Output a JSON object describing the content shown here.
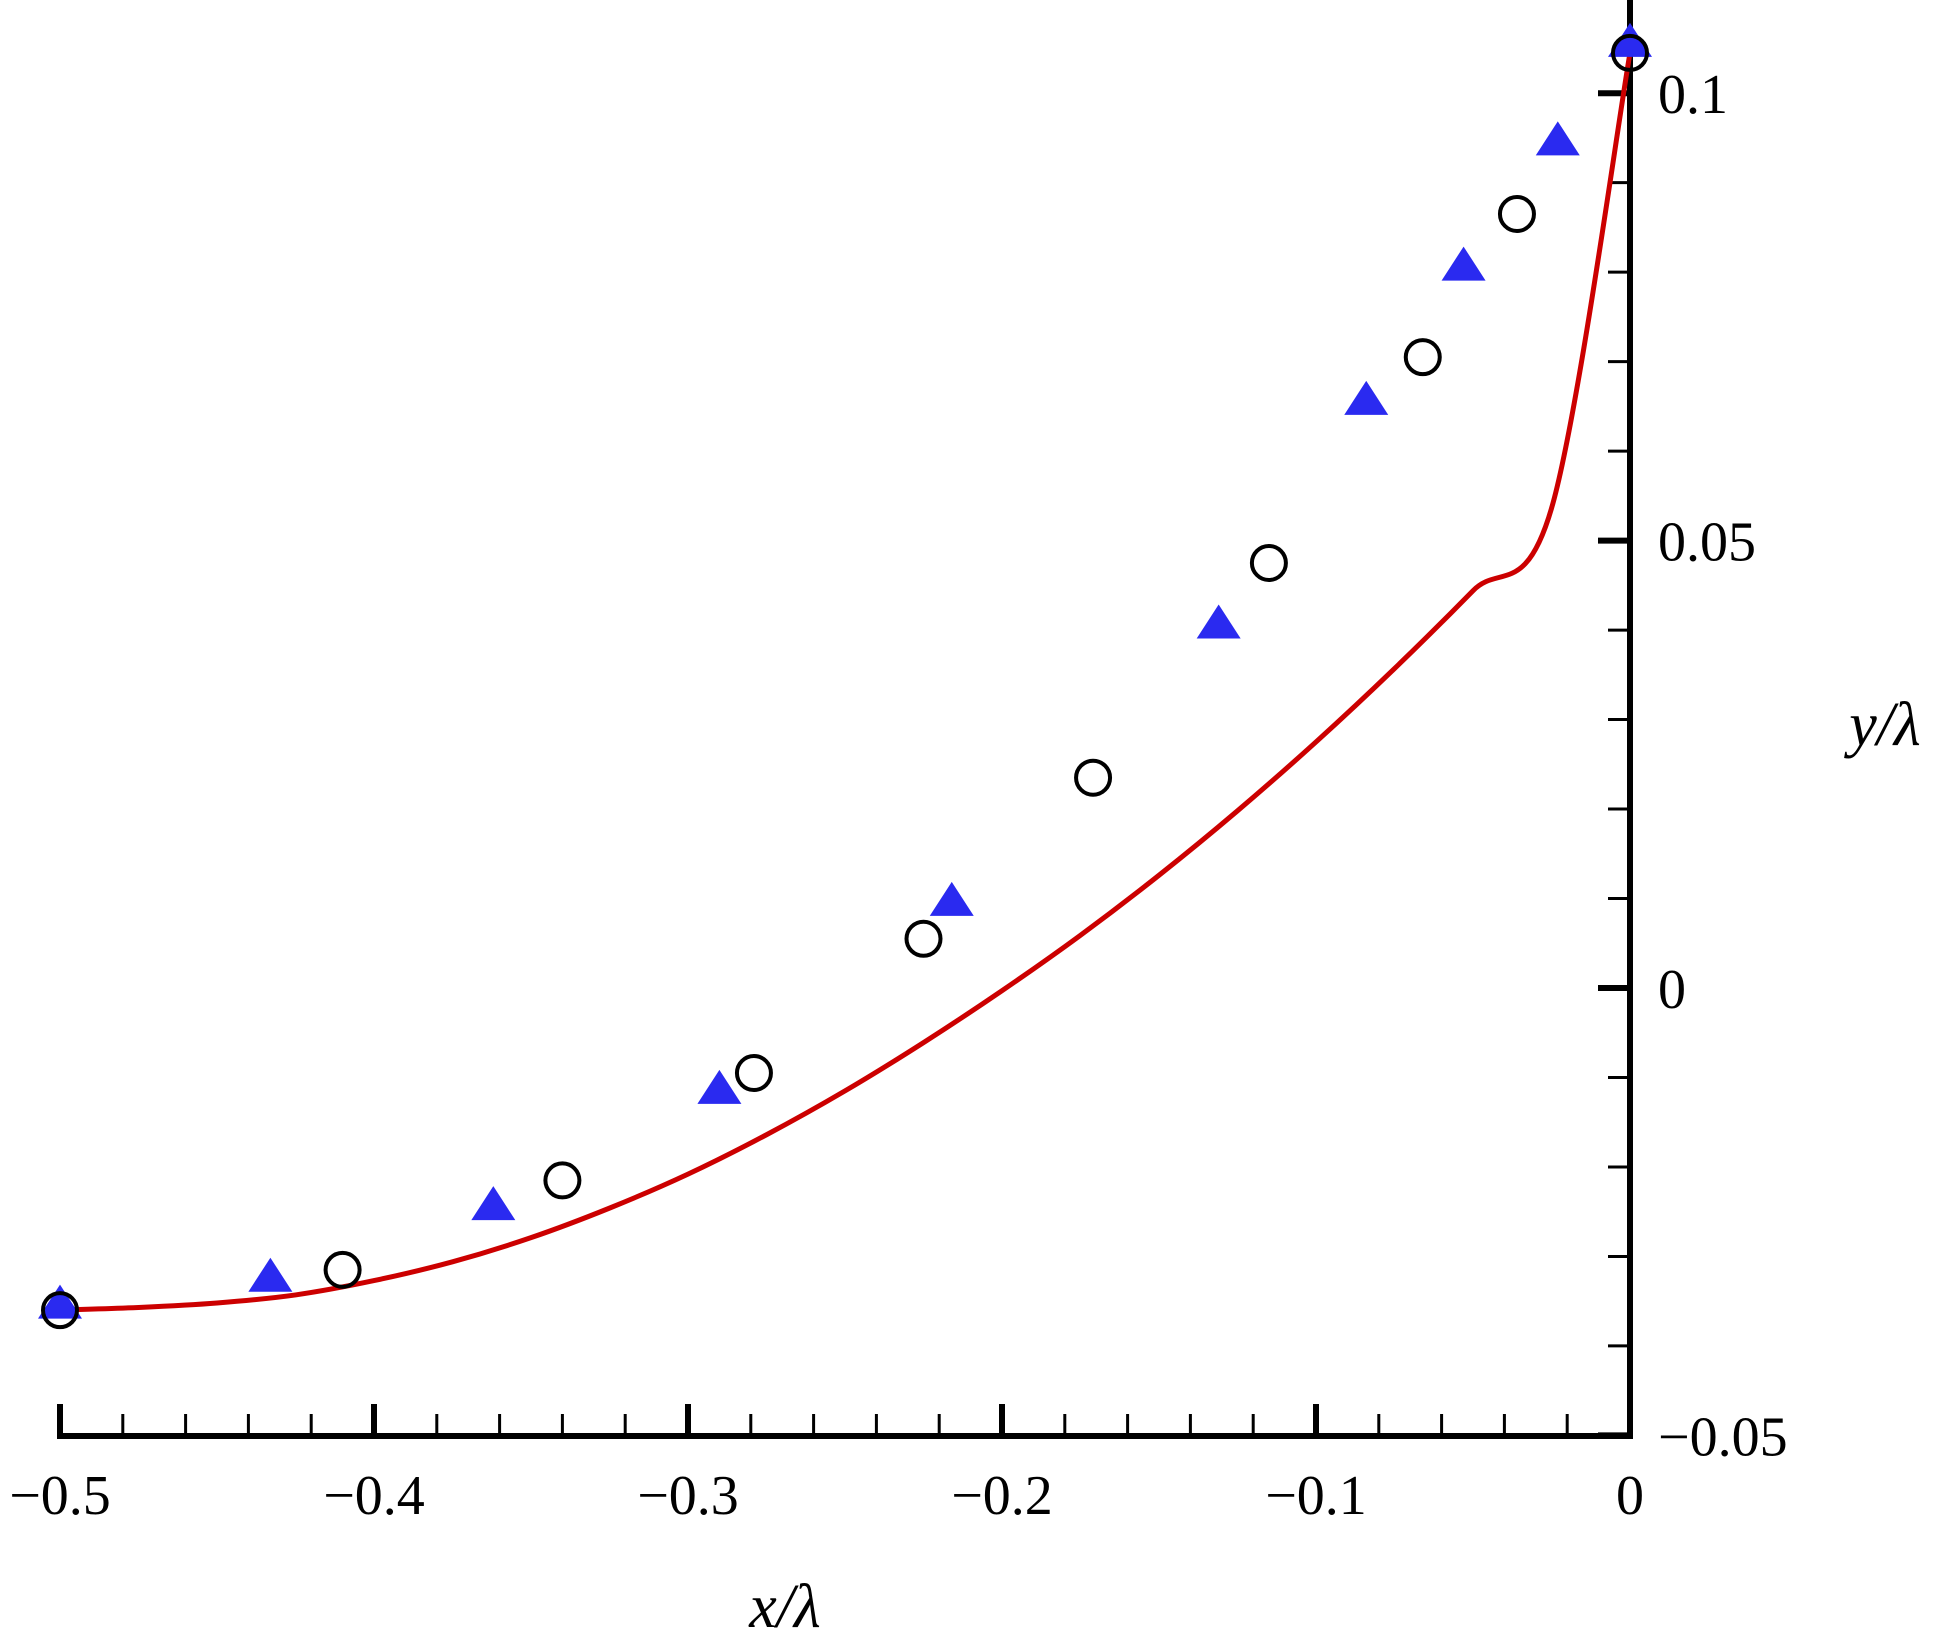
{
  "chart_data": {
    "type": "line",
    "title": "",
    "xlabel": "x/λ",
    "ylabel": "y/λ",
    "xlim": [
      -0.5,
      0
    ],
    "ylim": [
      -0.05,
      0.105
    ],
    "x_ticks": [
      -0.5,
      -0.4,
      -0.3,
      -0.2,
      -0.1,
      0
    ],
    "x_tick_labels": [
      "−0.5",
      "−0.4",
      "−0.3",
      "−0.2",
      "−0.1",
      "0"
    ],
    "y_ticks": [
      -0.05,
      0,
      0.05,
      0.1
    ],
    "y_tick_labels": [
      "−0.05",
      "0",
      "0.05",
      "0.1"
    ],
    "x_minor_step": 0.02,
    "y_minor_step": 0.01,
    "grid": false,
    "legend": "none",
    "colors": {
      "line": "#cc0000",
      "triangles": "#2a2af0",
      "circles": "#000000",
      "axes": "#000000"
    },
    "series": [
      {
        "style": "line",
        "x": [
          -0.5,
          -0.475,
          -0.45,
          -0.425,
          -0.4,
          -0.375,
          -0.35,
          -0.325,
          -0.3,
          -0.275,
          -0.25,
          -0.225,
          -0.2,
          -0.175,
          -0.15,
          -0.125,
          -0.1,
          -0.075,
          -0.05,
          -0.025,
          0
        ],
        "y": [
          -0.036,
          -0.0357,
          -0.0352,
          -0.0343,
          -0.0327,
          -0.0306,
          -0.0279,
          -0.0246,
          -0.0208,
          -0.0164,
          -0.0115,
          -0.0061,
          -0.0003,
          0.0059,
          0.0126,
          0.0198,
          0.0275,
          0.0357,
          0.0444,
          0.0536,
          0.1045
        ]
      },
      {
        "style": "triangle-markers",
        "x": [
          -0.5,
          -0.433,
          -0.362,
          -0.29,
          -0.216,
          -0.131,
          -0.084,
          -0.053,
          -0.023,
          0
        ],
        "y": [
          -0.0355,
          -0.0325,
          -0.0245,
          -0.0115,
          0.0095,
          0.0405,
          0.0655,
          0.0805,
          0.0945,
          0.1055
        ]
      },
      {
        "style": "circle-markers",
        "x": [
          -0.5,
          -0.41,
          -0.34,
          -0.279,
          -0.225,
          -0.171,
          -0.115,
          -0.066,
          -0.036,
          0
        ],
        "y": [
          -0.036,
          -0.0315,
          -0.0215,
          -0.0095,
          0.0055,
          0.0235,
          0.0475,
          0.0705,
          0.0865,
          0.1045
        ]
      }
    ]
  }
}
